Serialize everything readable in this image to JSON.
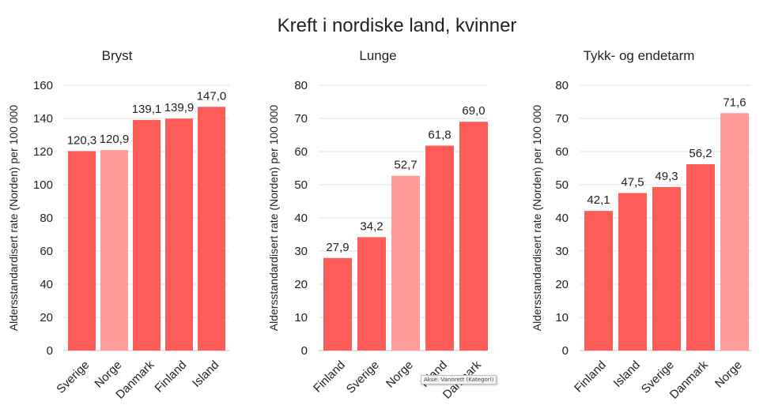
{
  "title": "Kreft i nordiske land, kvinner",
  "tooltip": "Akse: Vannrett (Kategori)",
  "colors": {
    "bar": "#fe5c58",
    "highlight": "#fe9c9a",
    "grid": "#e0e0e0",
    "axis": "#bfbfbf",
    "text": "#222222"
  },
  "chart_data": [
    {
      "type": "bar",
      "title": "Bryst",
      "ylabel": "Aldersstandardisert rate (Norden) per 100 000",
      "categories": [
        "Sverige",
        "Norge",
        "Danmark",
        "Finland",
        "Island"
      ],
      "values": [
        120.3,
        120.9,
        139.1,
        139.9,
        147.0
      ],
      "labels": [
        "120,3",
        "120,9",
        "139,1",
        "139,9",
        "147,0"
      ],
      "highlight": "Norge",
      "ylim": [
        0,
        160
      ],
      "yticks": [
        0,
        20,
        40,
        60,
        80,
        100,
        120,
        140,
        160
      ],
      "grid": true
    },
    {
      "type": "bar",
      "title": "Lunge",
      "ylabel": "Aldersstandardisert rate (Norden) per 100 000",
      "categories": [
        "Finland",
        "Sverige",
        "Norge",
        "Island",
        "Danmark"
      ],
      "values": [
        27.9,
        34.2,
        52.7,
        61.8,
        69.0
      ],
      "labels": [
        "27,9",
        "34,2",
        "52,7",
        "61,8",
        "69,0"
      ],
      "highlight": "Norge",
      "ylim": [
        0,
        80
      ],
      "yticks": [
        0,
        10,
        20,
        30,
        40,
        50,
        60,
        70,
        80
      ],
      "grid": true
    },
    {
      "type": "bar",
      "title": "Tykk- og endetarm",
      "ylabel": "Aldersstandardisert rate (Norden) per 100 000",
      "categories": [
        "Finland",
        "Island",
        "Sverige",
        "Danmark",
        "Norge"
      ],
      "values": [
        42.1,
        47.5,
        49.3,
        56.2,
        71.6
      ],
      "labels": [
        "42,1",
        "47,5",
        "49,3",
        "56,2",
        "71,6"
      ],
      "highlight": "Norge",
      "ylim": [
        0,
        80
      ],
      "yticks": [
        0,
        10,
        20,
        30,
        40,
        50,
        60,
        70,
        80
      ],
      "grid": true
    }
  ]
}
